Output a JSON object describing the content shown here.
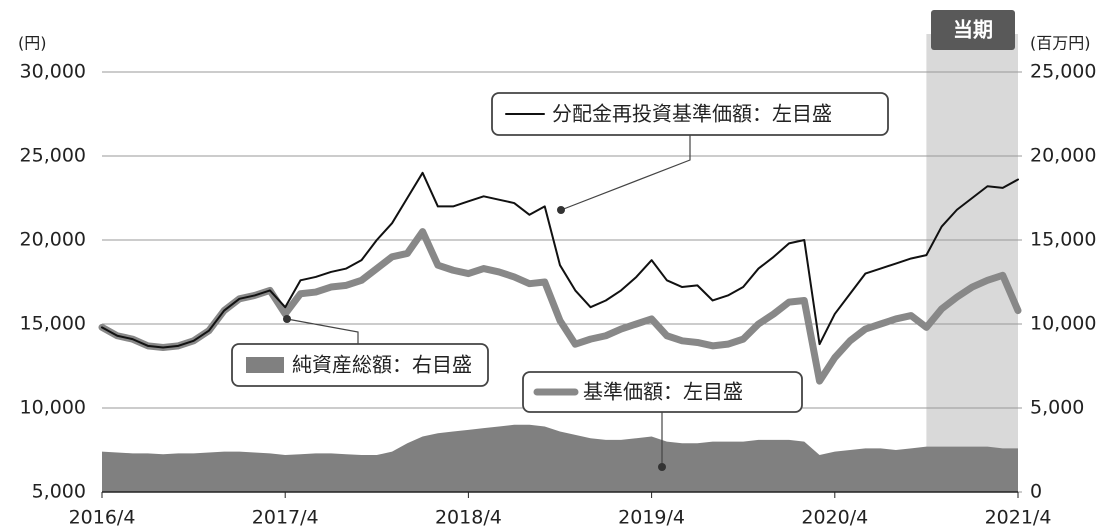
{
  "chart_data": {
    "type": "line",
    "y_label": "(円)",
    "y2_label": "(百万円)",
    "highlight": {
      "label": "当期",
      "from": "2020/10",
      "to": "2021/4"
    },
    "x": [
      "2016/4",
      "2016/5",
      "2016/6",
      "2016/7",
      "2016/8",
      "2016/9",
      "2016/10",
      "2016/11",
      "2016/12",
      "2017/1",
      "2017/2",
      "2017/3",
      "2017/4",
      "2017/5",
      "2017/6",
      "2017/7",
      "2017/8",
      "2017/9",
      "2017/10",
      "2017/11",
      "2017/12",
      "2018/1",
      "2018/2",
      "2018/3",
      "2018/4",
      "2018/5",
      "2018/6",
      "2018/7",
      "2018/8",
      "2018/9",
      "2018/10",
      "2018/11",
      "2018/12",
      "2019/1",
      "2019/2",
      "2019/3",
      "2019/4",
      "2019/5",
      "2019/6",
      "2019/7",
      "2019/8",
      "2019/9",
      "2019/10",
      "2019/11",
      "2019/12",
      "2020/1",
      "2020/2",
      "2020/3",
      "2020/4",
      "2020/5",
      "2020/6",
      "2020/7",
      "2020/8",
      "2020/9",
      "2020/10",
      "2020/11",
      "2020/12",
      "2021/1",
      "2021/2",
      "2021/3",
      "2021/4"
    ],
    "series": [
      {
        "name": "純資産総額：右目盛",
        "kind": "area",
        "axis": "y2",
        "color": "#808080",
        "values": [
          2400,
          2350,
          2300,
          2300,
          2250,
          2300,
          2300,
          2350,
          2400,
          2400,
          2350,
          2300,
          2200,
          2250,
          2300,
          2300,
          2250,
          2200,
          2200,
          2400,
          2900,
          3300,
          3500,
          3600,
          3700,
          3800,
          3900,
          4000,
          4000,
          3900,
          3600,
          3400,
          3200,
          3100,
          3100,
          3200,
          3300,
          3000,
          2900,
          2900,
          3000,
          3000,
          3000,
          3100,
          3100,
          3100,
          3000,
          2200,
          2400,
          2500,
          2600,
          2600,
          2500,
          2600,
          2700,
          2700,
          2700,
          2700,
          2700,
          2600,
          2600
        ]
      },
      {
        "name": "基準価額：左目盛",
        "kind": "thick",
        "color": "#888888",
        "values": [
          14800,
          14300,
          14100,
          13700,
          13600,
          13700,
          14000,
          14600,
          15800,
          16500,
          16700,
          17000,
          15600,
          16800,
          16900,
          17200,
          17300,
          17600,
          18300,
          19000,
          19200,
          20500,
          18500,
          18200,
          18000,
          18300,
          18100,
          17800,
          17400,
          17500,
          15200,
          13800,
          14100,
          14300,
          14700,
          15000,
          15300,
          14300,
          14000,
          13900,
          13700,
          13800,
          14100,
          15000,
          15600,
          16300,
          16400,
          11600,
          13000,
          14000,
          14700,
          15000,
          15300,
          15500,
          14800,
          15900,
          16600,
          17200,
          17600,
          17900,
          15800
        ]
      },
      {
        "name": "分配金再投資基準価額：左目盛",
        "kind": "thin",
        "color": "#111111",
        "values": [
          14800,
          14300,
          14100,
          13700,
          13600,
          13700,
          14000,
          14600,
          15800,
          16500,
          16700,
          17000,
          16000,
          17600,
          17800,
          18100,
          18300,
          18800,
          20000,
          21000,
          22500,
          24000,
          22000,
          22000,
          22300,
          22600,
          22400,
          22200,
          21500,
          22000,
          18500,
          17000,
          16000,
          16400,
          17000,
          17800,
          18800,
          17600,
          17200,
          17300,
          16400,
          16700,
          17200,
          18300,
          19000,
          19800,
          20000,
          13800,
          15600,
          16800,
          18000,
          18300,
          18600,
          18900,
          19100,
          20800,
          21800,
          22500,
          23200,
          23100,
          23600
        ]
      }
    ],
    "xticks": [
      "2016/4",
      "2017/4",
      "2018/4",
      "2019/4",
      "2020/4",
      "2021/4"
    ],
    "ylim": [
      5000,
      30000
    ],
    "yticks": [
      {
        "value": 5000,
        "label": "5,000"
      },
      {
        "value": 10000,
        "label": "10,000"
      },
      {
        "value": 15000,
        "label": "15,000"
      },
      {
        "value": 20000,
        "label": "20,000"
      },
      {
        "value": 25000,
        "label": "25,000"
      },
      {
        "value": 30000,
        "label": "30,000"
      }
    ],
    "y2lim": [
      0,
      25000
    ],
    "y2ticks": [
      0,
      {
        "value": 5000,
        "label": "5,000"
      },
      {
        "value": 10000,
        "label": "10,000"
      },
      {
        "value": 15000,
        "label": "15,000"
      },
      {
        "value": 20000,
        "label": "20,000"
      },
      {
        "value": 25000,
        "label": "25,000"
      }
    ],
    "grid": true
  }
}
